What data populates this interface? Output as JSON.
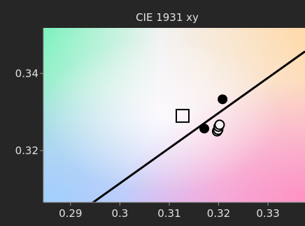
{
  "chart_data": {
    "type": "scatter",
    "title": "CIE 1931 xy",
    "xlabel": "",
    "ylabel": "",
    "xlim": [
      0.2845,
      0.3375
    ],
    "ylim": [
      0.3066,
      0.3518
    ],
    "x_ticks": [
      {
        "value": 0.29,
        "label": "0.29"
      },
      {
        "value": 0.3,
        "label": "0.3"
      },
      {
        "value": 0.31,
        "label": "0.31"
      },
      {
        "value": 0.32,
        "label": "0.32"
      },
      {
        "value": 0.33,
        "label": "0.33"
      }
    ],
    "y_ticks": [
      {
        "value": 0.32,
        "label": "0.32"
      },
      {
        "value": 0.34,
        "label": "0.34"
      }
    ],
    "grid": false,
    "background": "cie-chromaticity-gradient",
    "line": {
      "name": "",
      "points": [
        {
          "x": 0.2945,
          "y": 0.3065
        },
        {
          "x": 0.3375,
          "y": 0.3457
        }
      ]
    },
    "target_marker": {
      "shape": "open-square",
      "x": 0.3127,
      "y": 0.329
    },
    "series": [
      {
        "marker": "filled-circle",
        "points": [
          {
            "x": 0.3208,
            "y": 0.3333
          },
          {
            "x": 0.3171,
            "y": 0.3257
          }
        ]
      },
      {
        "marker": "open-circle",
        "points": [
          {
            "x": 0.3197,
            "y": 0.325
          },
          {
            "x": 0.3199,
            "y": 0.3254
          },
          {
            "x": 0.32,
            "y": 0.3262
          },
          {
            "x": 0.3202,
            "y": 0.3267
          }
        ]
      }
    ]
  },
  "colors": {
    "background": "#262626",
    "text": "#e0e0e0",
    "axis": "#9a9a9a",
    "line": "#000000",
    "marker_fill_dark": "#000000",
    "marker_fill_light": "#f2f2f2",
    "marker_stroke": "#000000"
  }
}
